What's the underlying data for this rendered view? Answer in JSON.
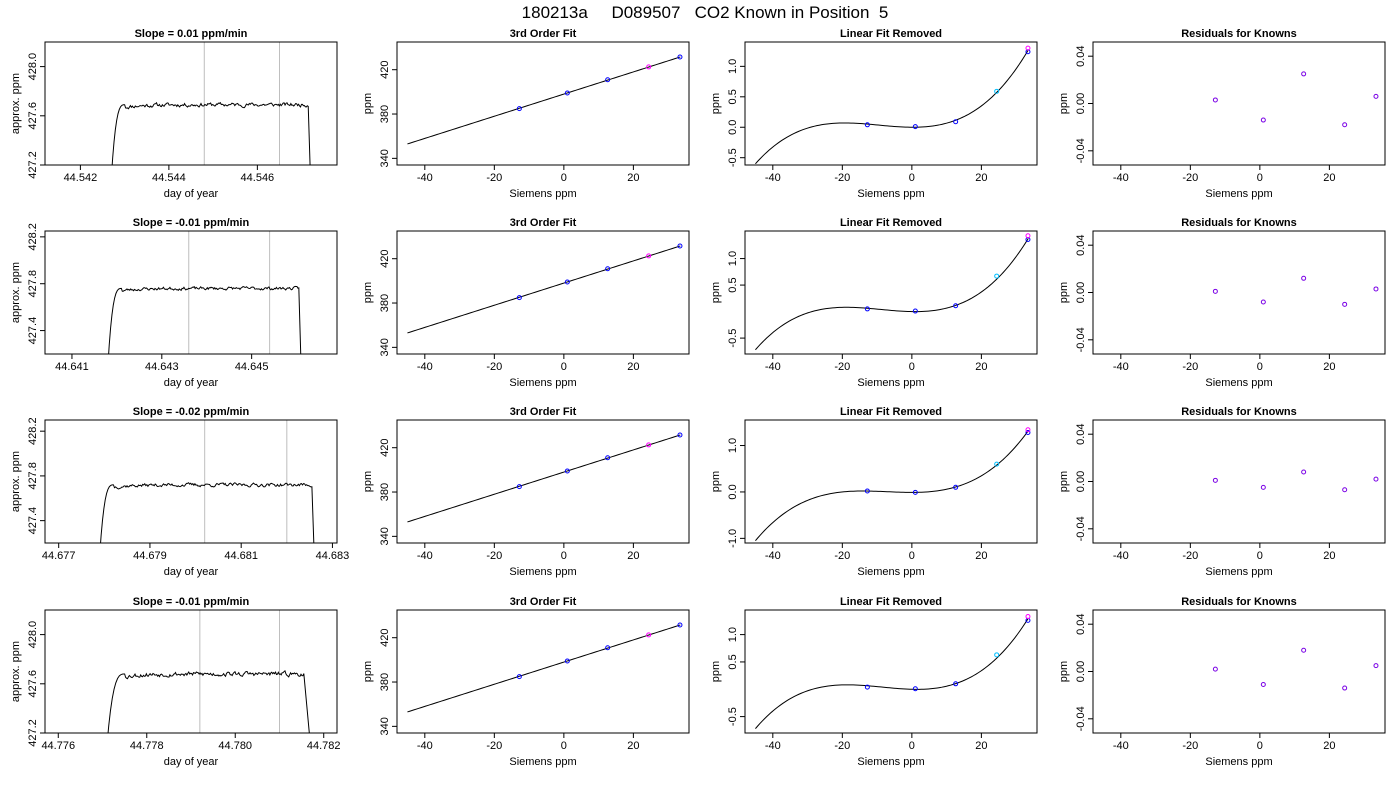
{
  "figure": {
    "suptitle": "180213a     D089507   CO2 Known in Position  5"
  },
  "chart_data": [
    {
      "type": "line",
      "row": 0,
      "col": 0,
      "title": "Slope =  0.01  ppm/min",
      "xlabel": "day of year",
      "ylabel": "approx. ppm",
      "xlim": [
        44.5412,
        44.5478
      ],
      "ylim": [
        427.2,
        428.2
      ],
      "xticks": [
        44.542,
        44.544,
        44.546
      ],
      "xtick_labels": [
        "44.542",
        "44.544",
        "44.546"
      ],
      "yticks": [
        427.2,
        427.6,
        428.0
      ],
      "ytick_labels": [
        "427.2",
        "427.6",
        "428.0"
      ],
      "vlines": [
        44.5448,
        44.5465
      ],
      "trace": {
        "x_start": 44.5427,
        "x_rise_end": 44.543,
        "x_fall_start": 44.54715,
        "x_end": 44.5472,
        "base": 427.1,
        "level": 427.69,
        "noise": 0.012,
        "seed": 11
      }
    },
    {
      "type": "scatter",
      "row": 0,
      "col": 1,
      "title": "3rd Order Fit",
      "xlabel": "Siemens ppm",
      "ylabel": "ppm",
      "xlim": [
        -48,
        36
      ],
      "ylim": [
        334,
        445
      ],
      "xticks": [
        -40,
        -20,
        0,
        20
      ],
      "xtick_labels": [
        "-40",
        "-20",
        "0",
        "20"
      ],
      "yticks": [
        340,
        380,
        420
      ],
      "ytick_labels": [
        "340",
        "380",
        "420"
      ],
      "curve": {
        "type": "linear",
        "a": 398.0,
        "b": 1.0,
        "x_from": -45,
        "x_to": 33.5
      },
      "points": [
        {
          "x": -12.8,
          "y": 384.9,
          "c": "blue"
        },
        {
          "x": 1.0,
          "y": 399.0,
          "c": "blue"
        },
        {
          "x": 12.6,
          "y": 410.9,
          "c": "blue"
        },
        {
          "x": 24.4,
          "y": 422.5,
          "c": "magenta"
        },
        {
          "x": 33.4,
          "y": 431.5,
          "c": "blue"
        }
      ]
    },
    {
      "type": "scatter",
      "row": 0,
      "col": 2,
      "title": "Linear Fit Removed",
      "xlabel": "Siemens ppm",
      "ylabel": "ppm",
      "xlim": [
        -48,
        36
      ],
      "ylim": [
        -0.62,
        1.4
      ],
      "xticks": [
        -40,
        -20,
        0,
        20
      ],
      "xtick_labels": [
        "-40",
        "-20",
        "0",
        "20"
      ],
      "yticks": [
        -0.5,
        0.0,
        0.5,
        1.0
      ],
      "ytick_labels": [
        "-0.5",
        "0.0",
        "0.5",
        "1.0"
      ],
      "curve": {
        "type": "cubic",
        "x_from": -45,
        "x_to": 33.5,
        "p1": [
          -45,
          -0.6
        ],
        "p2": [
          -20,
          0.07
        ],
        "p3": [
          0,
          0.0
        ],
        "p4": [
          33.5,
          1.27
        ]
      },
      "points": [
        {
          "x": -12.8,
          "y": 0.04,
          "c": "blue"
        },
        {
          "x": 1.0,
          "y": 0.01,
          "c": "blue"
        },
        {
          "x": 12.6,
          "y": 0.09,
          "c": "blue"
        },
        {
          "x": 24.4,
          "y": 0.59,
          "c": "cyan"
        },
        {
          "x": 33.4,
          "y": 1.24,
          "c": "blue"
        },
        {
          "x": 33.4,
          "y": 1.3,
          "c": "magenta"
        }
      ]
    },
    {
      "type": "scatter",
      "row": 0,
      "col": 3,
      "title": "Residuals for Knowns",
      "xlabel": "Siemens ppm",
      "ylabel": "ppm",
      "xlim": [
        -48,
        36
      ],
      "ylim": [
        -0.052,
        0.052
      ],
      "xticks": [
        -40,
        -20,
        0,
        20
      ],
      "xtick_labels": [
        "-40",
        "-20",
        "0",
        "20"
      ],
      "yticks": [
        -0.04,
        0.0,
        0.04
      ],
      "ytick_labels": [
        "-0.04",
        "0.00",
        "0.04"
      ],
      "points": [
        {
          "x": -12.8,
          "y": 0.003,
          "c": "purple"
        },
        {
          "x": 1.0,
          "y": -0.014,
          "c": "purple"
        },
        {
          "x": 12.6,
          "y": 0.025,
          "c": "purple"
        },
        {
          "x": 24.4,
          "y": -0.018,
          "c": "purple"
        },
        {
          "x": 33.4,
          "y": 0.006,
          "c": "purple"
        }
      ]
    },
    {
      "type": "line",
      "row": 1,
      "col": 0,
      "title": "Slope =  -0.01  ppm/min",
      "xlabel": "day of year",
      "ylabel": "approx. ppm",
      "xlim": [
        44.6404,
        44.6469
      ],
      "ylim": [
        427.2,
        428.25
      ],
      "xticks": [
        44.641,
        44.643,
        44.645
      ],
      "xtick_labels": [
        "44.641",
        "44.643",
        "44.645"
      ],
      "yticks": [
        427.4,
        427.8,
        428.2
      ],
      "ytick_labels": [
        "427.4",
        "427.8",
        "428.2"
      ],
      "vlines": [
        44.6436,
        44.6454
      ],
      "trace": {
        "x_start": 44.6418,
        "x_rise_end": 44.6421,
        "x_fall_start": 44.64605,
        "x_end": 44.6461,
        "base": 427.1,
        "level": 427.76,
        "noise": 0.01,
        "seed": 23
      }
    },
    {
      "type": "scatter",
      "row": 1,
      "col": 1,
      "title": "3rd Order Fit",
      "xlabel": "Siemens ppm",
      "ylabel": "ppm",
      "xlim": [
        -48,
        36
      ],
      "ylim": [
        334,
        445
      ],
      "xticks": [
        -40,
        -20,
        0,
        20
      ],
      "xtick_labels": [
        "-40",
        "-20",
        "0",
        "20"
      ],
      "yticks": [
        340,
        380,
        420
      ],
      "ytick_labels": [
        "340",
        "380",
        "420"
      ],
      "curve": {
        "type": "linear",
        "a": 398.0,
        "b": 1.0,
        "x_from": -45,
        "x_to": 33.5
      },
      "points": [
        {
          "x": -12.8,
          "y": 384.9,
          "c": "blue"
        },
        {
          "x": 1.0,
          "y": 399.0,
          "c": "blue"
        },
        {
          "x": 12.6,
          "y": 410.9,
          "c": "blue"
        },
        {
          "x": 24.4,
          "y": 422.5,
          "c": "magenta"
        },
        {
          "x": 33.4,
          "y": 431.5,
          "c": "blue"
        }
      ]
    },
    {
      "type": "scatter",
      "row": 1,
      "col": 2,
      "title": "Linear Fit Removed",
      "xlabel": "Siemens ppm",
      "ylabel": "ppm",
      "xlim": [
        -48,
        36
      ],
      "ylim": [
        -0.8,
        1.52
      ],
      "xticks": [
        -40,
        -20,
        0,
        20
      ],
      "xtick_labels": [
        "-40",
        "-20",
        "0",
        "20"
      ],
      "yticks": [
        -0.5,
        0.5,
        1.0
      ],
      "ytick_labels": [
        "-0.5",
        "0.5",
        "1.0"
      ],
      "curve": {
        "type": "cubic",
        "x_from": -45,
        "x_to": 33.5,
        "p1": [
          -45,
          -0.72
        ],
        "p2": [
          -20,
          0.08
        ],
        "p3": [
          0,
          0.0
        ],
        "p4": [
          33.5,
          1.38
        ]
      },
      "points": [
        {
          "x": -12.8,
          "y": 0.05,
          "c": "blue"
        },
        {
          "x": 1.0,
          "y": 0.01,
          "c": "blue"
        },
        {
          "x": 12.6,
          "y": 0.11,
          "c": "blue"
        },
        {
          "x": 24.4,
          "y": 0.67,
          "c": "cyan"
        },
        {
          "x": 33.4,
          "y": 1.36,
          "c": "blue"
        },
        {
          "x": 33.4,
          "y": 1.43,
          "c": "magenta"
        }
      ]
    },
    {
      "type": "scatter",
      "row": 1,
      "col": 3,
      "title": "Residuals for Knowns",
      "xlabel": "Siemens ppm",
      "ylabel": "ppm",
      "xlim": [
        -48,
        36
      ],
      "ylim": [
        -0.052,
        0.052
      ],
      "xticks": [
        -40,
        -20,
        0,
        20
      ],
      "xtick_labels": [
        "-40",
        "-20",
        "0",
        "20"
      ],
      "yticks": [
        -0.04,
        0.0,
        0.04
      ],
      "ytick_labels": [
        "-0.04",
        "0.00",
        "0.04"
      ],
      "points": [
        {
          "x": -12.8,
          "y": 0.001,
          "c": "purple"
        },
        {
          "x": 1.0,
          "y": -0.008,
          "c": "purple"
        },
        {
          "x": 12.6,
          "y": 0.012,
          "c": "purple"
        },
        {
          "x": 24.4,
          "y": -0.01,
          "c": "purple"
        },
        {
          "x": 33.4,
          "y": 0.003,
          "c": "purple"
        }
      ]
    },
    {
      "type": "line",
      "row": 2,
      "col": 0,
      "title": "Slope =  -0.02  ppm/min",
      "xlabel": "day of year",
      "ylabel": "approx. ppm",
      "xlim": [
        44.6767,
        44.6831
      ],
      "ylim": [
        427.2,
        428.3
      ],
      "xticks": [
        44.677,
        44.679,
        44.681,
        44.683
      ],
      "xtick_labels": [
        "44.677",
        "44.679",
        "44.681",
        "44.683"
      ],
      "yticks": [
        427.4,
        427.8,
        428.2
      ],
      "ytick_labels": [
        "427.4",
        "427.8",
        "428.2"
      ],
      "vlines": [
        44.6802,
        44.682
      ],
      "trace": {
        "x_start": 44.6779,
        "x_rise_end": 44.6782,
        "x_fall_start": 44.68255,
        "x_end": 44.6826,
        "base": 427.1,
        "level": 427.72,
        "noise": 0.012,
        "seed": 37
      }
    },
    {
      "type": "scatter",
      "row": 2,
      "col": 1,
      "title": "3rd Order Fit",
      "xlabel": "Siemens ppm",
      "ylabel": "ppm",
      "xlim": [
        -48,
        36
      ],
      "ylim": [
        334,
        445
      ],
      "xticks": [
        -40,
        -20,
        0,
        20
      ],
      "xtick_labels": [
        "-40",
        "-20",
        "0",
        "20"
      ],
      "yticks": [
        340,
        380,
        420
      ],
      "ytick_labels": [
        "340",
        "380",
        "420"
      ],
      "curve": {
        "type": "linear",
        "a": 398.0,
        "b": 1.0,
        "x_from": -45,
        "x_to": 33.5
      },
      "points": [
        {
          "x": -12.8,
          "y": 384.9,
          "c": "blue"
        },
        {
          "x": 1.0,
          "y": 399.0,
          "c": "blue"
        },
        {
          "x": 12.6,
          "y": 410.9,
          "c": "blue"
        },
        {
          "x": 24.4,
          "y": 422.5,
          "c": "magenta"
        },
        {
          "x": 33.4,
          "y": 431.5,
          "c": "blue"
        }
      ]
    },
    {
      "type": "scatter",
      "row": 2,
      "col": 2,
      "title": "Linear Fit Removed",
      "xlabel": "Siemens ppm",
      "ylabel": "ppm",
      "xlim": [
        -48,
        36
      ],
      "ylim": [
        -1.1,
        1.55
      ],
      "xticks": [
        -40,
        -20,
        0,
        20
      ],
      "xtick_labels": [
        "-40",
        "-20",
        "0",
        "20"
      ],
      "yticks": [
        -1.0,
        0.0,
        1.0
      ],
      "ytick_labels": [
        "-1.0",
        "0.0",
        "1.0"
      ],
      "curve": {
        "type": "cubic",
        "x_from": -45,
        "x_to": 33.5,
        "p1": [
          -45,
          -1.05
        ],
        "p2": [
          -20,
          0.0
        ],
        "p3": [
          0,
          -0.01
        ],
        "p4": [
          33.5,
          1.32
        ]
      },
      "points": [
        {
          "x": -12.8,
          "y": 0.02,
          "c": "blue"
        },
        {
          "x": 1.0,
          "y": -0.01,
          "c": "blue"
        },
        {
          "x": 12.6,
          "y": 0.1,
          "c": "blue"
        },
        {
          "x": 24.4,
          "y": 0.6,
          "c": "cyan"
        },
        {
          "x": 33.4,
          "y": 1.28,
          "c": "blue"
        },
        {
          "x": 33.4,
          "y": 1.34,
          "c": "magenta"
        }
      ]
    },
    {
      "type": "scatter",
      "row": 2,
      "col": 3,
      "title": "Residuals for Knowns",
      "xlabel": "Siemens ppm",
      "ylabel": "ppm",
      "xlim": [
        -48,
        36
      ],
      "ylim": [
        -0.052,
        0.052
      ],
      "xticks": [
        -40,
        -20,
        0,
        20
      ],
      "xtick_labels": [
        "-40",
        "-20",
        "0",
        "20"
      ],
      "yticks": [
        -0.04,
        0.0,
        0.04
      ],
      "ytick_labels": [
        "-0.04",
        "0.00",
        "0.04"
      ],
      "points": [
        {
          "x": -12.8,
          "y": 0.001,
          "c": "purple"
        },
        {
          "x": 1.0,
          "y": -0.005,
          "c": "purple"
        },
        {
          "x": 12.6,
          "y": 0.008,
          "c": "purple"
        },
        {
          "x": 24.4,
          "y": -0.007,
          "c": "purple"
        },
        {
          "x": 33.4,
          "y": 0.002,
          "c": "purple"
        }
      ]
    },
    {
      "type": "line",
      "row": 3,
      "col": 0,
      "title": "Slope =  -0.01  ppm/min",
      "xlabel": "day of year",
      "ylabel": "approx. ppm",
      "xlim": [
        44.7757,
        44.7823
      ],
      "ylim": [
        427.2,
        428.2
      ],
      "xticks": [
        44.776,
        44.778,
        44.78,
        44.782
      ],
      "xtick_labels": [
        "44.776",
        "44.778",
        "44.780",
        "44.782"
      ],
      "yticks": [
        427.2,
        427.6,
        428.0
      ],
      "ytick_labels": [
        "427.2",
        "427.6",
        "428.0"
      ],
      "vlines": [
        44.7792,
        44.781
      ],
      "trace": {
        "x_start": 44.7771,
        "x_rise_end": 44.7775,
        "x_fall_start": 44.78155,
        "x_end": 44.7817,
        "base": 427.1,
        "level": 427.68,
        "noise": 0.014,
        "seed": 53
      }
    },
    {
      "type": "scatter",
      "row": 3,
      "col": 1,
      "title": "3rd Order Fit",
      "xlabel": "Siemens ppm",
      "ylabel": "ppm",
      "xlim": [
        -48,
        36
      ],
      "ylim": [
        334,
        445
      ],
      "xticks": [
        -40,
        -20,
        0,
        20
      ],
      "xtick_labels": [
        "-40",
        "-20",
        "0",
        "20"
      ],
      "yticks": [
        340,
        380,
        420
      ],
      "ytick_labels": [
        "340",
        "380",
        "420"
      ],
      "curve": {
        "type": "linear",
        "a": 398.0,
        "b": 1.0,
        "x_from": -45,
        "x_to": 33.5
      },
      "points": [
        {
          "x": -12.8,
          "y": 384.9,
          "c": "blue"
        },
        {
          "x": 1.0,
          "y": 399.0,
          "c": "blue"
        },
        {
          "x": 12.6,
          "y": 410.9,
          "c": "blue"
        },
        {
          "x": 24.4,
          "y": 422.5,
          "c": "magenta"
        },
        {
          "x": 33.4,
          "y": 431.5,
          "c": "blue"
        }
      ]
    },
    {
      "type": "scatter",
      "row": 3,
      "col": 2,
      "title": "Linear Fit Removed",
      "xlabel": "Siemens ppm",
      "ylabel": "ppm",
      "xlim": [
        -48,
        36
      ],
      "ylim": [
        -0.8,
        1.45
      ],
      "xticks": [
        -40,
        -20,
        0,
        20
      ],
      "xtick_labels": [
        "-40",
        "-20",
        "0",
        "20"
      ],
      "yticks": [
        -0.5,
        0.5,
        1.0
      ],
      "ytick_labels": [
        "-0.5",
        "0.5",
        "1.0"
      ],
      "curve": {
        "type": "cubic",
        "x_from": -45,
        "x_to": 33.5,
        "p1": [
          -45,
          -0.72
        ],
        "p2": [
          -20,
          0.08
        ],
        "p3": [
          0,
          0.0
        ],
        "p4": [
          33.5,
          1.3
        ]
      },
      "points": [
        {
          "x": -12.8,
          "y": 0.04,
          "c": "blue"
        },
        {
          "x": 1.0,
          "y": 0.01,
          "c": "blue"
        },
        {
          "x": 12.6,
          "y": 0.1,
          "c": "blue"
        },
        {
          "x": 24.4,
          "y": 0.63,
          "c": "cyan"
        },
        {
          "x": 33.4,
          "y": 1.26,
          "c": "blue"
        },
        {
          "x": 33.4,
          "y": 1.33,
          "c": "magenta"
        }
      ]
    },
    {
      "type": "scatter",
      "row": 3,
      "col": 3,
      "title": "Residuals for Knowns",
      "xlabel": "Siemens ppm",
      "ylabel": "ppm",
      "xlim": [
        -48,
        36
      ],
      "ylim": [
        -0.052,
        0.052
      ],
      "xticks": [
        -40,
        -20,
        0,
        20
      ],
      "xtick_labels": [
        "-40",
        "-20",
        "0",
        "20"
      ],
      "yticks": [
        -0.04,
        0.0,
        0.04
      ],
      "ytick_labels": [
        "-0.04",
        "0.00",
        "0.04"
      ],
      "points": [
        {
          "x": -12.8,
          "y": 0.002,
          "c": "purple"
        },
        {
          "x": 1.0,
          "y": -0.011,
          "c": "purple"
        },
        {
          "x": 12.6,
          "y": 0.018,
          "c": "purple"
        },
        {
          "x": 24.4,
          "y": -0.014,
          "c": "purple"
        },
        {
          "x": 33.4,
          "y": 0.005,
          "c": "purple"
        }
      ]
    }
  ],
  "colors": {
    "axis": "#000000",
    "line": "#000000",
    "vline": "#bebebe",
    "blue": "#0000ff",
    "magenta": "#ff00ff",
    "cyan": "#00bfff",
    "purple": "#7a00e6"
  }
}
